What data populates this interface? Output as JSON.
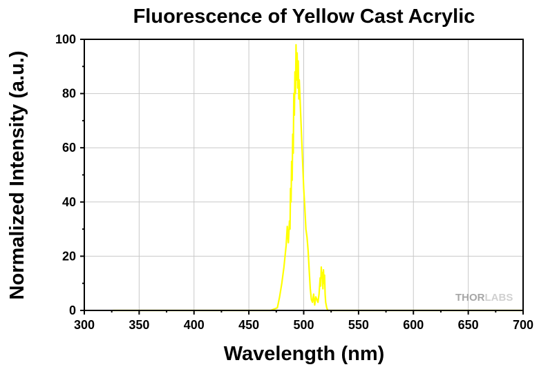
{
  "chart_data": {
    "type": "line",
    "title": "Fluorescence of Yellow Cast Acrylic",
    "xlabel": "Wavelength (nm)",
    "ylabel": "Normalized Intensity (a.u.)",
    "xlim": [
      300,
      700
    ],
    "ylim": [
      0,
      100
    ],
    "xticks": [
      300,
      350,
      400,
      450,
      500,
      550,
      600,
      650,
      700
    ],
    "yticks": [
      0,
      20,
      40,
      60,
      80,
      100
    ],
    "grid": true,
    "watermark": "THORLABS",
    "series": [
      {
        "color": "#ffff00",
        "x": [
          326,
          360,
          400,
          440,
          470,
          476,
          478,
          480,
          482,
          484,
          485,
          486,
          487,
          487.5,
          488,
          488.5,
          489,
          489.5,
          490,
          490.5,
          491,
          491.5,
          492,
          492.5,
          493,
          493.5,
          494,
          494.5,
          495,
          495.5,
          496,
          497,
          498,
          499,
          500,
          501,
          502,
          503,
          504,
          505,
          506,
          507,
          508,
          509,
          510,
          511,
          512,
          513,
          514,
          515,
          515.5,
          516,
          516.5,
          517,
          517.5,
          518,
          518.5,
          519,
          519.5,
          520,
          521,
          522,
          525,
          540,
          600,
          660,
          700
        ],
        "y": [
          0,
          0,
          0,
          0,
          0,
          1,
          5,
          10,
          16,
          24,
          31,
          25,
          33,
          30,
          45,
          40,
          55,
          48,
          65,
          58,
          80,
          72,
          88,
          80,
          98,
          85,
          95,
          82,
          92,
          78,
          85,
          75,
          65,
          55,
          45,
          38,
          30,
          27,
          22,
          15,
          8,
          4,
          3,
          6,
          2,
          5,
          4,
          3,
          6,
          12,
          9,
          16,
          12,
          14,
          8,
          15,
          10,
          13,
          6,
          3,
          1,
          0,
          0,
          0,
          0,
          0,
          0
        ]
      }
    ]
  }
}
